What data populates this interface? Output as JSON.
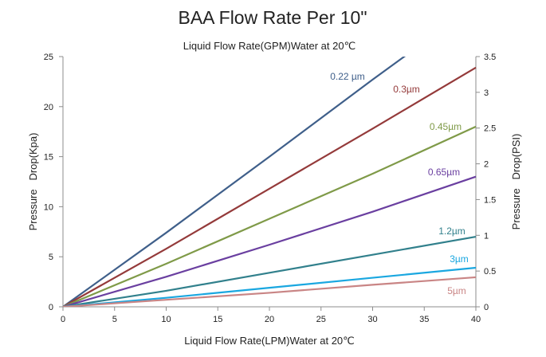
{
  "chart_data": {
    "type": "line",
    "title": "BAA  Flow Rate Per 10\"",
    "subtitle": "Liquid Flow Rate(GPM)Water at 20℃",
    "xlabel": "Liquid Flow Rate(LPM)Water at 20℃",
    "ylabel": "Pressure   Drop(Kpa)",
    "y2label": "Pressure   Drop(PSI)",
    "xlim": [
      0,
      40
    ],
    "ylim": [
      0,
      25
    ],
    "y2lim": [
      0,
      3.5
    ],
    "xticks": [
      "0",
      "5",
      "10",
      "15",
      "20",
      "25",
      "30",
      "35",
      "40"
    ],
    "yticks": [
      "0",
      "5",
      "10",
      "15",
      "20",
      "25"
    ],
    "y2ticks": [
      "0",
      "0.5",
      "1",
      "1.5",
      "2",
      "2.5",
      "3",
      "3.5"
    ],
    "grid": false,
    "x": [
      0,
      10,
      20,
      30,
      40
    ],
    "series": [
      {
        "name": "0.22 µm",
        "color": "#3f5f8a",
        "values": [
          0,
          7.4,
          15,
          22.7,
          30.2
        ]
      },
      {
        "name": "0.3µm",
        "color": "#943a3a",
        "values": [
          0,
          5.8,
          11.8,
          17.8,
          23.9
        ]
      },
      {
        "name": "0.45µm",
        "color": "#7f9a48",
        "values": [
          0,
          4.3,
          8.8,
          13.3,
          18.0
        ]
      },
      {
        "name": "0.65µm",
        "color": "#6a3fa0",
        "values": [
          0,
          3.0,
          6.2,
          9.5,
          13.0
        ]
      },
      {
        "name": "1.2µm",
        "color": "#31808c",
        "values": [
          0,
          1.6,
          3.4,
          5.2,
          7.0
        ]
      },
      {
        "name": "3µm",
        "color": "#1aa7e0",
        "values": [
          0,
          0.9,
          1.9,
          2.9,
          3.9
        ]
      },
      {
        "name": "5µm",
        "color": "#c98585",
        "values": [
          0,
          0.7,
          1.4,
          2.2,
          2.95
        ]
      }
    ]
  }
}
